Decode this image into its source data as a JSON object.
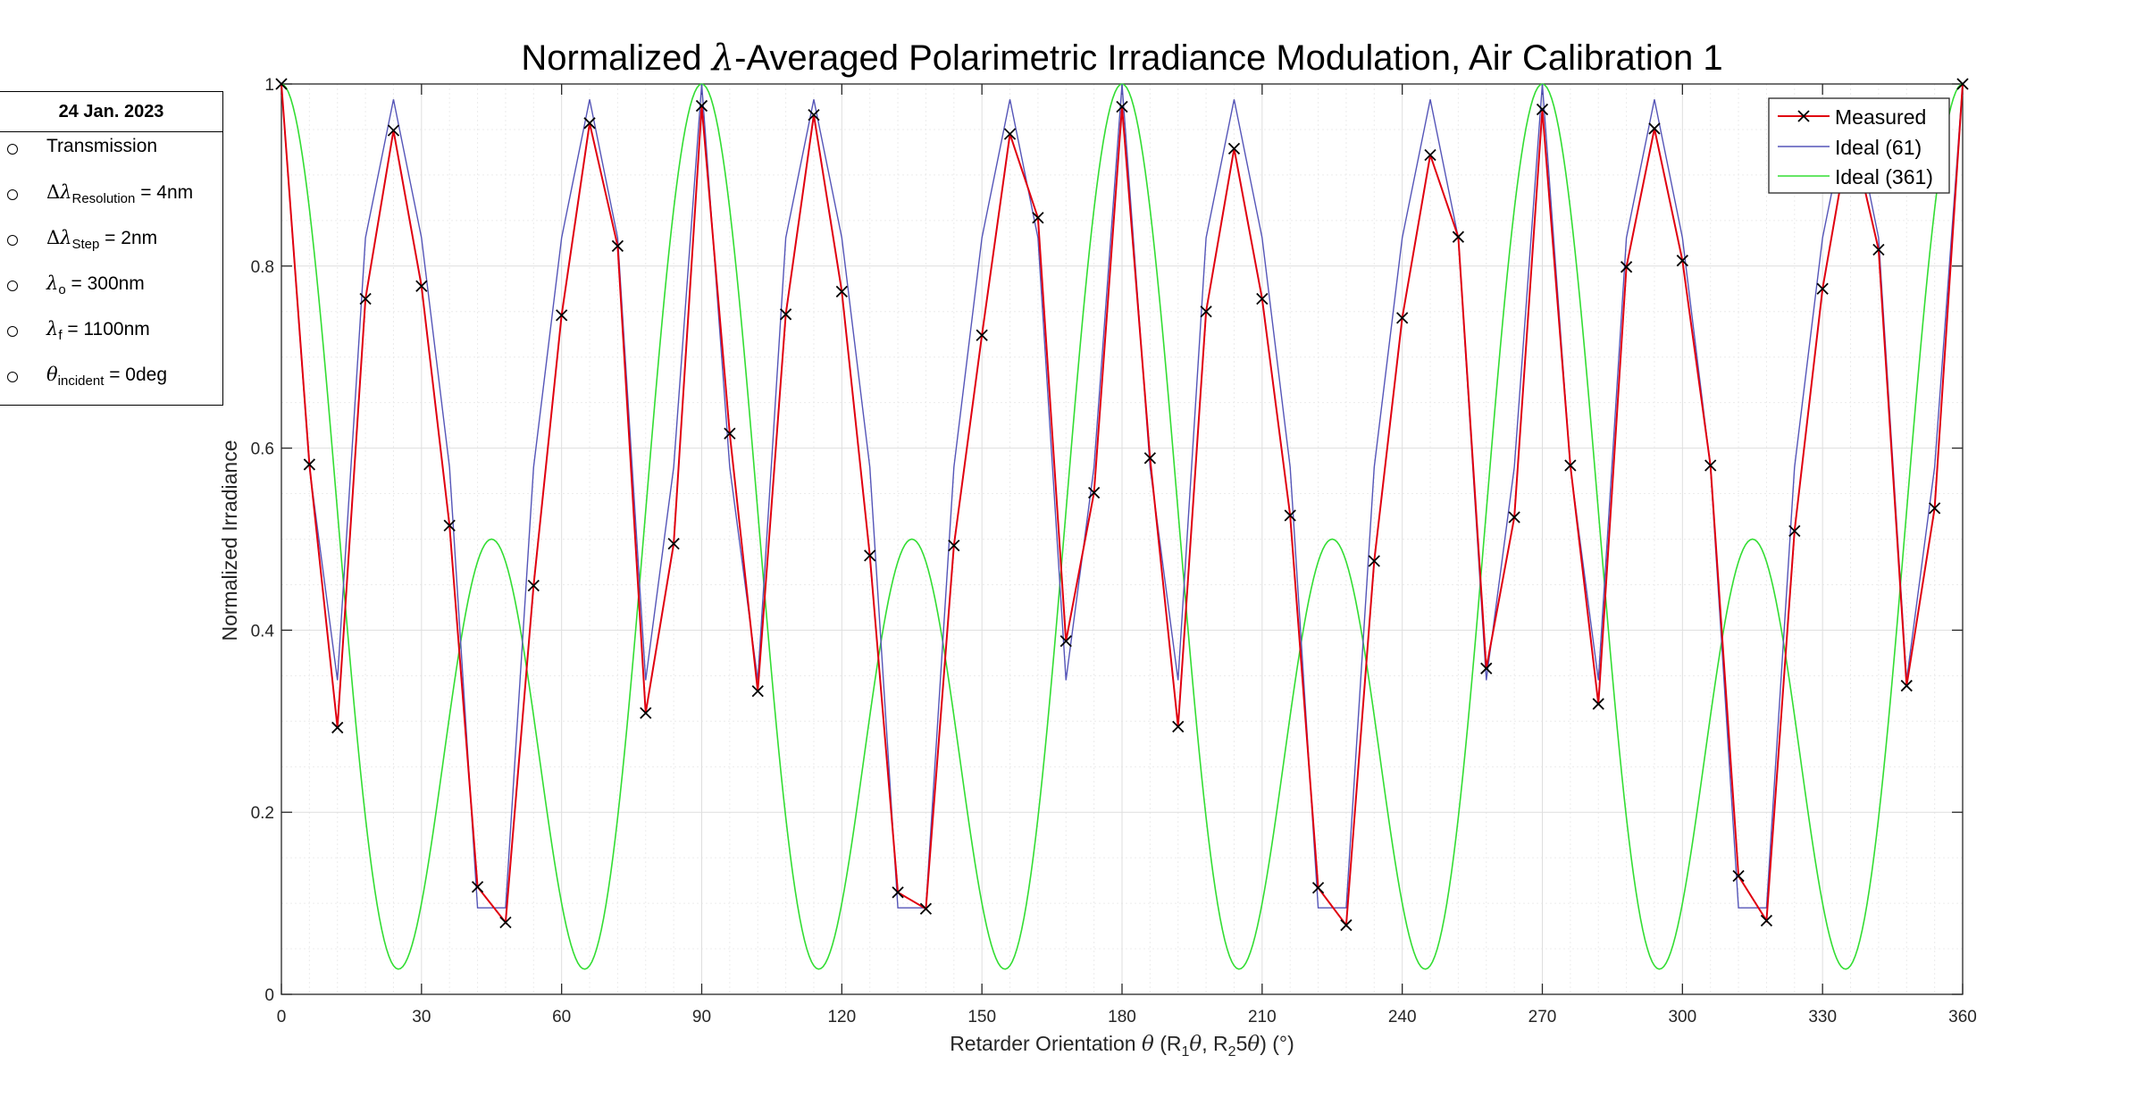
{
  "chart_data": {
    "type": "line",
    "title_parts": [
      "Normalized ",
      "λ",
      "-Averaged Polarimetric Irradiance Modulation,  Air Calibration 1"
    ],
    "xlabel_parts": [
      "Retarder Orientation ",
      "θ",
      " (R",
      "1",
      "θ",
      ", R",
      "2",
      "5",
      "θ",
      ") (°)"
    ],
    "ylabel": "Normalized Irradiance",
    "xlim": [
      0,
      360
    ],
    "ylim": [
      0,
      1
    ],
    "xticks": [
      0,
      30,
      60,
      90,
      120,
      150,
      180,
      210,
      240,
      270,
      300,
      330,
      360
    ],
    "yticks": [
      0,
      0.2,
      0.4,
      0.6,
      0.8,
      1
    ],
    "grid": "on (major and minor)",
    "legend_position": "top-right",
    "x_step": 6,
    "series": [
      {
        "name": "Measured",
        "color": "#e0000f",
        "marker": "x",
        "values": [
          1.0,
          0.582,
          0.293,
          0.764,
          0.949,
          0.778,
          0.515,
          0.118,
          0.079,
          0.449,
          0.746,
          0.957,
          0.822,
          0.309,
          0.495,
          0.976,
          0.616,
          0.333,
          0.747,
          0.966,
          0.772,
          0.482,
          0.112,
          0.094,
          0.493,
          0.724,
          0.945,
          0.853,
          0.388,
          0.551,
          0.975,
          0.589,
          0.294,
          0.75,
          0.929,
          0.764,
          0.526,
          0.117,
          0.076,
          0.476,
          0.743,
          0.922,
          0.832,
          0.358,
          0.524,
          0.972,
          0.581,
          0.319,
          0.799,
          0.951,
          0.806,
          0.581,
          0.13,
          0.081,
          0.509,
          0.775,
          0.952,
          0.818,
          0.339,
          0.534,
          1.0
        ]
      },
      {
        "name": "Ideal (61)",
        "color": "#5555b8",
        "values": [
          1.0,
          0.579,
          0.345,
          0.831,
          0.983,
          0.831,
          0.579,
          0.095,
          0.095,
          0.579,
          0.831,
          0.983,
          0.831,
          0.345,
          0.579,
          1.0,
          0.579,
          0.345,
          0.831,
          0.983,
          0.831,
          0.579,
          0.095,
          0.095,
          0.579,
          0.831,
          0.983,
          0.831,
          0.345,
          0.579,
          1.0,
          0.579,
          0.345,
          0.831,
          0.983,
          0.831,
          0.579,
          0.095,
          0.095,
          0.579,
          0.831,
          0.983,
          0.831,
          0.345,
          0.579,
          1.0,
          0.579,
          0.345,
          0.831,
          0.983,
          0.831,
          0.579,
          0.095,
          0.095,
          0.579,
          0.831,
          0.983,
          0.831,
          0.345,
          0.579,
          1.0
        ]
      },
      {
        "name": "Ideal (361)",
        "color": "#33dd33",
        "model": "0.4 + 0.25*cos(4θ) + 0.35*cos(8θ)"
      }
    ]
  },
  "info_box": {
    "header": "24 Jan. 2023",
    "rows": [
      {
        "pre": "",
        "sym": "",
        "sub": "",
        "post": "Transmission"
      },
      {
        "pre": "Δ",
        "sym": "λ",
        "sub": "Resolution",
        "post": " = 4nm"
      },
      {
        "pre": "Δ",
        "sym": "λ",
        "sub": "Step",
        "post": " = 2nm"
      },
      {
        "pre": "",
        "sym": "λ",
        "sub": "o",
        "post": " = 300nm"
      },
      {
        "pre": "",
        "sym": "λ",
        "sub": "f",
        "post": " = 1100nm"
      },
      {
        "pre": "",
        "sym": "θ",
        "sub": "incident",
        "post": " = 0deg"
      }
    ]
  }
}
